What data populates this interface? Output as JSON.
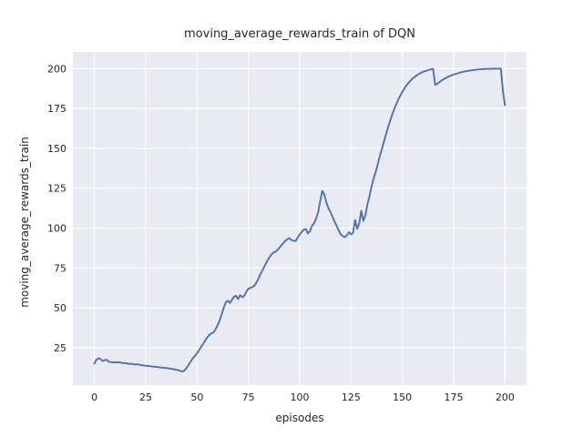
{
  "chart_data": {
    "type": "line",
    "title": "moving_average_rewards_train of DQN",
    "xlabel": "episodes",
    "ylabel": "moving_average_rewards_train",
    "x_ticks": [
      0,
      25,
      50,
      75,
      100,
      125,
      150,
      175,
      200
    ],
    "y_ticks": [
      25,
      50,
      75,
      100,
      125,
      150,
      175,
      200
    ],
    "xlim": [
      -10.5,
      210.5
    ],
    "ylim": [
      1.5,
      210.5
    ],
    "grid": true,
    "legend": "none",
    "x_start": 0,
    "x_step": 1,
    "series": [
      {
        "name": "moving_average_rewards_train",
        "values": [
          15.0,
          17.5,
          18.4,
          17.8,
          16.6,
          17.2,
          17.4,
          16.2,
          15.9,
          15.8,
          15.9,
          15.7,
          15.8,
          15.6,
          15.2,
          15.4,
          15.0,
          14.8,
          14.9,
          14.6,
          14.4,
          14.6,
          14.2,
          14.0,
          13.8,
          13.6,
          13.5,
          13.4,
          13.2,
          13.1,
          12.9,
          12.8,
          12.6,
          12.5,
          12.3,
          12.2,
          12.0,
          11.8,
          11.6,
          11.4,
          11.1,
          10.8,
          10.4,
          10.0,
          10.8,
          12.5,
          14.5,
          16.5,
          18.5,
          19.8,
          21.5,
          23.5,
          25.5,
          27.5,
          29.5,
          31.5,
          33.0,
          34.0,
          34.5,
          36.5,
          39.0,
          42.0,
          46.0,
          50.0,
          53.5,
          54.5,
          53.0,
          55.0,
          57.0,
          57.5,
          55.5,
          58.0,
          56.5,
          57.5,
          60.0,
          62.0,
          62.5,
          63.0,
          64.0,
          66.0,
          68.5,
          71.5,
          74.0,
          76.5,
          79.0,
          81.0,
          83.0,
          84.5,
          85.0,
          86.0,
          87.5,
          89.0,
          90.5,
          92.0,
          93.0,
          93.7,
          92.5,
          92.0,
          91.8,
          94.0,
          96.0,
          97.5,
          99.0,
          99.4,
          96.6,
          98.0,
          101.4,
          103.0,
          106.0,
          110.0,
          117.0,
          123.3,
          121.0,
          116.0,
          112.5,
          110.0,
          107.0,
          104.0,
          101.4,
          98.5,
          96.0,
          95.0,
          94.3,
          95.5,
          97.5,
          96.0,
          97.1,
          105.0,
          99.5,
          103.0,
          110.8,
          104.5,
          108.0,
          115.0,
          120.0,
          126.0,
          131.0,
          135.0,
          140.0,
          145.0,
          149.5,
          154.0,
          158.5,
          163.0,
          167.0,
          171.0,
          174.5,
          177.5,
          180.5,
          183.0,
          185.5,
          187.5,
          189.5,
          191.0,
          192.5,
          193.8,
          194.8,
          195.8,
          196.6,
          197.3,
          197.9,
          198.4,
          198.8,
          199.2,
          199.6,
          199.8,
          189.8,
          190.5,
          191.5,
          192.5,
          193.3,
          194.0,
          194.7,
          195.3,
          195.8,
          196.3,
          196.7,
          197.1,
          197.5,
          197.8,
          198.1,
          198.4,
          198.6,
          198.8,
          199.0,
          199.2,
          199.4,
          199.5,
          199.6,
          199.7,
          199.8,
          199.8,
          199.9,
          199.9,
          199.9,
          200.0,
          200.0,
          200.0,
          200.0,
          186.0,
          177.0
        ]
      }
    ],
    "colors": {
      "line": "#4C72B0",
      "plot_background": "#EAEAF2",
      "grid": "#FFFFFF",
      "figure_background": "#FFFFFF",
      "text": "#262626"
    }
  }
}
